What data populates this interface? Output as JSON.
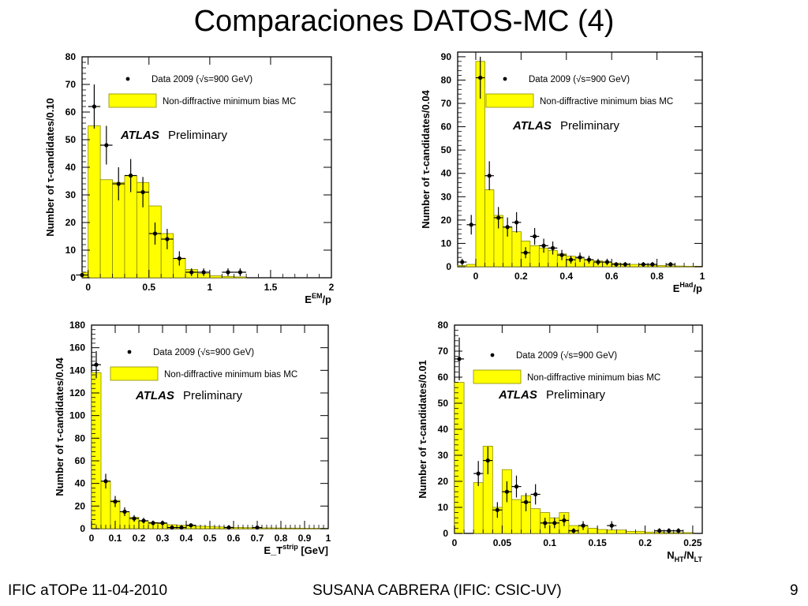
{
  "slide": {
    "title": "Comparaciones DATOS-MC (4)",
    "footer_left": "IFIC aTOPe  11-04-2010",
    "footer_center": "SUSANA CABRERA (IFIC: CSIC-UV)",
    "footer_right": "9"
  },
  "colors": {
    "mc_fill": "#ffff00",
    "mc_edge": "#8a8a00",
    "data": "#000000"
  },
  "chart_data": [
    {
      "type": "bar",
      "xlabel": "E^{EM}/p",
      "ylabel": "Number of τ-candidates/0.10",
      "xlim": [
        -0.05,
        2.0
      ],
      "ylim": [
        0,
        80
      ],
      "xticks": [
        0,
        0.5,
        1,
        1.5,
        2
      ],
      "xtick_labels": [
        "0",
        "0.5",
        "1",
        "1.5",
        "2"
      ],
      "yticks": [
        0,
        10,
        20,
        30,
        40,
        50,
        60,
        70,
        80
      ],
      "legend": {
        "data_label": "Data 2009 (√s=900 GeV)",
        "mc_label": "Non-diffractive minimum bias MC",
        "atlas": "ATLAS",
        "prelim": "Preliminary"
      },
      "mc_bins": [
        [
          -0.05,
          0.0,
          2
        ],
        [
          0.0,
          0.1,
          55
        ],
        [
          0.1,
          0.2,
          35.5
        ],
        [
          0.2,
          0.3,
          34.5
        ],
        [
          0.3,
          0.4,
          37
        ],
        [
          0.4,
          0.5,
          34.5
        ],
        [
          0.5,
          0.6,
          26
        ],
        [
          0.6,
          0.7,
          16
        ],
        [
          0.7,
          0.8,
          7
        ],
        [
          0.8,
          0.9,
          3
        ],
        [
          0.9,
          1.0,
          1.5
        ],
        [
          1.0,
          1.1,
          0.7
        ],
        [
          1.1,
          1.2,
          0.5
        ],
        [
          1.2,
          1.3,
          0.3
        ]
      ],
      "data_points": [
        [
          -0.05,
          1,
          0
        ],
        [
          0.05,
          62,
          8
        ],
        [
          0.15,
          48,
          7
        ],
        [
          0.25,
          34,
          6
        ],
        [
          0.35,
          37,
          6
        ],
        [
          0.45,
          31,
          5.5
        ],
        [
          0.55,
          16,
          4
        ],
        [
          0.65,
          14,
          3.7
        ],
        [
          0.75,
          7,
          2.6
        ],
        [
          0.85,
          2,
          1.4
        ],
        [
          0.95,
          2,
          1.4
        ],
        [
          1.15,
          2,
          1.4
        ],
        [
          1.25,
          2,
          1.4
        ]
      ]
    },
    {
      "type": "bar",
      "xlabel": "E^{Had}/p",
      "ylabel": "Number of τ-candidates/0.04",
      "xlim": [
        -0.08,
        1.0
      ],
      "ylim": [
        0,
        92
      ],
      "xticks": [
        0,
        0.2,
        0.4,
        0.6,
        0.8,
        1
      ],
      "xtick_labels": [
        "0",
        "0.2",
        "0.4",
        "0.6",
        "0.8",
        "1"
      ],
      "yticks": [
        0,
        10,
        20,
        30,
        40,
        50,
        60,
        70,
        80,
        90
      ],
      "legend": {
        "data_label": "Data 2009 (√s=900 GeV)",
        "mc_label": "Non-diffractive minimum bias MC",
        "atlas": "ATLAS",
        "prelim": "Preliminary"
      },
      "mc_bins": [
        [
          -0.08,
          -0.04,
          0.5
        ],
        [
          -0.04,
          0.0,
          1
        ],
        [
          0.0,
          0.04,
          88
        ],
        [
          0.04,
          0.08,
          33
        ],
        [
          0.08,
          0.12,
          22
        ],
        [
          0.12,
          0.16,
          17
        ],
        [
          0.16,
          0.2,
          15
        ],
        [
          0.2,
          0.24,
          11
        ],
        [
          0.24,
          0.28,
          9
        ],
        [
          0.28,
          0.32,
          8
        ],
        [
          0.32,
          0.36,
          7
        ],
        [
          0.36,
          0.4,
          5.5
        ],
        [
          0.4,
          0.44,
          4.5
        ],
        [
          0.44,
          0.48,
          3.5
        ],
        [
          0.48,
          0.52,
          3
        ],
        [
          0.52,
          0.56,
          2.5
        ],
        [
          0.56,
          0.6,
          2
        ],
        [
          0.6,
          0.64,
          1.5
        ],
        [
          0.64,
          0.68,
          1.2
        ],
        [
          0.68,
          0.72,
          1
        ],
        [
          0.72,
          0.76,
          0.8
        ],
        [
          0.76,
          0.8,
          0.6
        ],
        [
          0.8,
          0.84,
          0.5
        ],
        [
          0.84,
          0.88,
          0.4
        ],
        [
          0.88,
          0.92,
          0.3
        ],
        [
          0.92,
          0.96,
          0.2
        ],
        [
          0.96,
          1.0,
          0.2
        ]
      ],
      "data_points": [
        [
          -0.06,
          2,
          1.4
        ],
        [
          -0.02,
          18,
          4.2
        ],
        [
          0.02,
          81,
          9
        ],
        [
          0.06,
          39,
          6.2
        ],
        [
          0.1,
          21,
          4.6
        ],
        [
          0.14,
          17,
          4.1
        ],
        [
          0.18,
          19,
          4.4
        ],
        [
          0.22,
          6,
          2.4
        ],
        [
          0.26,
          13,
          3.6
        ],
        [
          0.3,
          9,
          3
        ],
        [
          0.34,
          8,
          2.8
        ],
        [
          0.38,
          5,
          2.2
        ],
        [
          0.42,
          3,
          1.7
        ],
        [
          0.46,
          4,
          2
        ],
        [
          0.5,
          3,
          1.7
        ],
        [
          0.54,
          2,
          1.4
        ],
        [
          0.58,
          2,
          1.4
        ],
        [
          0.62,
          1,
          1
        ],
        [
          0.66,
          1,
          1
        ],
        [
          0.74,
          1,
          1
        ],
        [
          0.78,
          1,
          1
        ],
        [
          0.86,
          1,
          1
        ]
      ]
    },
    {
      "type": "bar",
      "xlabel": "E_T^{strip} [GeV]",
      "ylabel": "Number of τ-candidates/0.04",
      "xlim": [
        0,
        1.0
      ],
      "ylim": [
        0,
        180
      ],
      "xticks": [
        0,
        0.1,
        0.2,
        0.3,
        0.4,
        0.5,
        0.6,
        0.7,
        0.8,
        0.9,
        1
      ],
      "xtick_labels": [
        "0",
        "0.1",
        "0.2",
        "0.3",
        "0.4",
        "0.5",
        "0.6",
        "0.7",
        "0.8",
        "0.9",
        "1"
      ],
      "yticks": [
        0,
        20,
        40,
        60,
        80,
        100,
        120,
        140,
        160,
        180
      ],
      "legend": {
        "data_label": "Data 2009 (√s=900 GeV)",
        "mc_label": "Non-diffractive minimum bias MC",
        "atlas": "ATLAS",
        "prelim": "Preliminary"
      },
      "mc_bins": [
        [
          0.0,
          0.04,
          138
        ],
        [
          0.04,
          0.08,
          42
        ],
        [
          0.08,
          0.12,
          25
        ],
        [
          0.12,
          0.16,
          15
        ],
        [
          0.16,
          0.2,
          10
        ],
        [
          0.2,
          0.24,
          7
        ],
        [
          0.24,
          0.28,
          5.5
        ],
        [
          0.28,
          0.32,
          4.5
        ],
        [
          0.32,
          0.36,
          3.5
        ],
        [
          0.36,
          0.4,
          3
        ],
        [
          0.4,
          0.44,
          2.5
        ],
        [
          0.44,
          0.48,
          2.2
        ],
        [
          0.48,
          0.52,
          2
        ],
        [
          0.52,
          0.56,
          1.6
        ],
        [
          0.56,
          0.6,
          1.3
        ],
        [
          0.6,
          0.64,
          1.1
        ],
        [
          0.64,
          0.68,
          0.9
        ],
        [
          0.68,
          0.72,
          0.8
        ],
        [
          0.72,
          0.76,
          0.7
        ],
        [
          0.76,
          0.8,
          0.6
        ],
        [
          0.8,
          0.84,
          0.5
        ],
        [
          0.84,
          0.88,
          0.5
        ],
        [
          0.88,
          0.92,
          0.4
        ],
        [
          0.92,
          0.96,
          0.3
        ],
        [
          0.96,
          1.0,
          0.3
        ]
      ],
      "data_points": [
        [
          0.02,
          145,
          12
        ],
        [
          0.06,
          42,
          6.5
        ],
        [
          0.1,
          24,
          4.9
        ],
        [
          0.14,
          15,
          3.9
        ],
        [
          0.18,
          9,
          3
        ],
        [
          0.22,
          7,
          2.6
        ],
        [
          0.26,
          5,
          2.2
        ],
        [
          0.3,
          5,
          2.2
        ],
        [
          0.34,
          1,
          1
        ],
        [
          0.38,
          1,
          1
        ],
        [
          0.42,
          3,
          1.7
        ],
        [
          0.58,
          1,
          1
        ],
        [
          0.7,
          1,
          1
        ]
      ]
    },
    {
      "type": "bar",
      "xlabel": "N_{HT}/N_{LT}",
      "ylabel": "Number of τ-candidates/0.01",
      "xlim": [
        0,
        0.26
      ],
      "ylim": [
        0,
        80
      ],
      "xticks": [
        0,
        0.05,
        0.1,
        0.15,
        0.2,
        0.25
      ],
      "xtick_labels": [
        "0",
        "0.05",
        "0.1",
        "0.15",
        "0.2",
        "0.25"
      ],
      "yticks": [
        0,
        10,
        20,
        30,
        40,
        50,
        60,
        70,
        80
      ],
      "legend": {
        "data_label": "Data 2009 (√s=900 GeV)",
        "mc_label": "Non-diffractive minimum bias MC",
        "atlas": "ATLAS",
        "prelim": "Preliminary"
      },
      "mc_bins": [
        [
          0.0,
          0.01,
          58
        ],
        [
          0.01,
          0.02,
          0
        ],
        [
          0.02,
          0.03,
          19.5
        ],
        [
          0.03,
          0.04,
          33.5
        ],
        [
          0.04,
          0.05,
          10
        ],
        [
          0.05,
          0.06,
          24.5
        ],
        [
          0.06,
          0.07,
          13
        ],
        [
          0.07,
          0.08,
          14.5
        ],
        [
          0.08,
          0.09,
          9.5
        ],
        [
          0.09,
          0.1,
          8
        ],
        [
          0.1,
          0.11,
          6
        ],
        [
          0.11,
          0.12,
          8
        ],
        [
          0.12,
          0.13,
          3
        ],
        [
          0.13,
          0.14,
          3
        ],
        [
          0.14,
          0.15,
          2
        ],
        [
          0.15,
          0.16,
          1.5
        ],
        [
          0.16,
          0.18,
          1.3
        ],
        [
          0.18,
          0.2,
          0.8
        ],
        [
          0.2,
          0.22,
          0.5
        ],
        [
          0.22,
          0.25,
          0.3
        ]
      ],
      "data_points": [
        [
          0.005,
          67,
          8.2
        ],
        [
          0.025,
          23,
          4.8
        ],
        [
          0.035,
          28,
          5.3
        ],
        [
          0.045,
          9,
          3
        ],
        [
          0.055,
          16,
          4
        ],
        [
          0.065,
          18,
          4.2
        ],
        [
          0.075,
          12,
          3.5
        ],
        [
          0.085,
          15,
          3.9
        ],
        [
          0.095,
          4,
          2
        ],
        [
          0.105,
          4,
          2
        ],
        [
          0.115,
          5,
          2.2
        ],
        [
          0.125,
          1,
          1
        ],
        [
          0.135,
          3,
          1.7
        ],
        [
          0.165,
          3,
          1.7
        ],
        [
          0.215,
          1,
          1
        ],
        [
          0.225,
          1,
          1
        ],
        [
          0.235,
          1,
          1
        ]
      ]
    }
  ]
}
